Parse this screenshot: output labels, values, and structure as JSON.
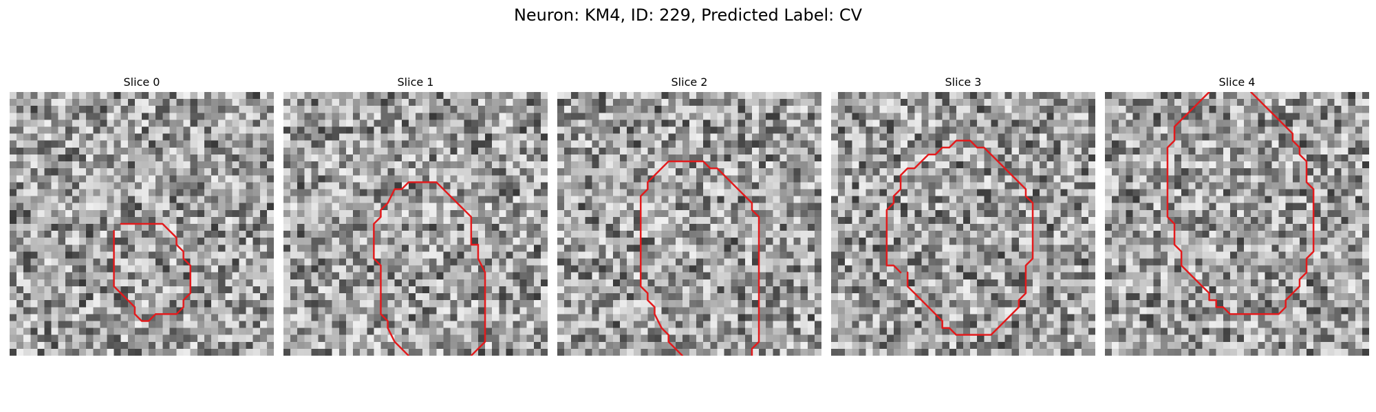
{
  "figure": {
    "title": "Neuron: KM4, ID: 229, Predicted Label: CV",
    "contour_color": "#e31a1c"
  },
  "panels": [
    {
      "title": "Slice 0",
      "contour": [
        [
          15,
          20
        ],
        [
          15,
          21
        ],
        [
          15,
          24
        ],
        [
          15,
          28
        ],
        [
          16,
          29
        ],
        [
          17,
          30
        ],
        [
          18,
          31
        ],
        [
          18,
          32
        ],
        [
          19,
          33
        ],
        [
          20,
          33
        ],
        [
          21,
          32
        ],
        [
          22,
          32
        ],
        [
          23,
          32
        ],
        [
          24,
          32
        ],
        [
          25,
          31
        ],
        [
          25,
          30
        ],
        [
          26,
          29
        ],
        [
          26,
          28
        ],
        [
          26,
          27
        ],
        [
          26,
          26
        ],
        [
          26,
          25
        ],
        [
          25,
          24
        ],
        [
          25,
          23
        ],
        [
          24,
          22
        ],
        [
          24,
          21
        ],
        [
          23,
          20
        ],
        [
          22,
          19
        ],
        [
          21,
          19
        ],
        [
          20,
          19
        ],
        [
          19,
          19
        ],
        [
          18,
          19
        ],
        [
          17,
          19
        ],
        [
          16,
          19
        ]
      ]
    },
    {
      "title": "Slice 1",
      "contour": [
        [
          18,
          38
        ],
        [
          16,
          36
        ],
        [
          15,
          34
        ],
        [
          15,
          33
        ],
        [
          14,
          32
        ],
        [
          14,
          30
        ],
        [
          14,
          25
        ],
        [
          13,
          24
        ],
        [
          13,
          23
        ],
        [
          13,
          20
        ],
        [
          13,
          19
        ],
        [
          14,
          18
        ],
        [
          14,
          17
        ],
        [
          15,
          16
        ],
        [
          16,
          14
        ],
        [
          17,
          14
        ],
        [
          18,
          13
        ],
        [
          19,
          13
        ],
        [
          20,
          13
        ],
        [
          21,
          13
        ],
        [
          22,
          13
        ],
        [
          23,
          14
        ],
        [
          24,
          15
        ],
        [
          25,
          16
        ],
        [
          26,
          17
        ],
        [
          27,
          18
        ],
        [
          27,
          20
        ],
        [
          27,
          22
        ],
        [
          28,
          22
        ],
        [
          28,
          23
        ],
        [
          28,
          24
        ],
        [
          29,
          26
        ],
        [
          29,
          27
        ],
        [
          29,
          28
        ],
        [
          29,
          29
        ],
        [
          29,
          30
        ],
        [
          29,
          33
        ],
        [
          29,
          35
        ],
        [
          29,
          36
        ],
        [
          28,
          37
        ],
        [
          27,
          38
        ]
      ]
    },
    {
      "title": "Slice 2",
      "contour": [
        [
          18,
          38
        ],
        [
          17,
          37
        ],
        [
          16,
          36
        ],
        [
          16,
          35
        ],
        [
          15,
          34
        ],
        [
          14,
          32
        ],
        [
          14,
          31
        ],
        [
          13,
          30
        ],
        [
          13,
          29
        ],
        [
          12,
          28
        ],
        [
          12,
          27
        ],
        [
          12,
          25
        ],
        [
          12,
          20
        ],
        [
          12,
          19
        ],
        [
          12,
          17
        ],
        [
          12,
          15
        ],
        [
          13,
          14
        ],
        [
          13,
          13
        ],
        [
          14,
          12
        ],
        [
          15,
          11
        ],
        [
          16,
          10
        ],
        [
          17,
          10
        ],
        [
          18,
          10
        ],
        [
          19,
          10
        ],
        [
          20,
          10
        ],
        [
          21,
          10
        ],
        [
          22,
          11
        ],
        [
          23,
          11
        ],
        [
          24,
          12
        ],
        [
          25,
          13
        ],
        [
          26,
          14
        ],
        [
          27,
          15
        ],
        [
          28,
          16
        ],
        [
          28,
          17
        ],
        [
          29,
          18
        ],
        [
          29,
          20
        ],
        [
          29,
          22
        ],
        [
          29,
          25
        ],
        [
          29,
          28
        ],
        [
          29,
          30
        ],
        [
          29,
          32
        ],
        [
          29,
          34
        ],
        [
          29,
          35
        ],
        [
          29,
          36
        ],
        [
          28,
          37
        ],
        [
          28,
          38
        ]
      ]
    },
    {
      "title": "Slice 3",
      "contour": [
        [
          11,
          26
        ],
        [
          11,
          27
        ],
        [
          11,
          28
        ],
        [
          12,
          29
        ],
        [
          13,
          30
        ],
        [
          14,
          31
        ],
        [
          15,
          32
        ],
        [
          16,
          33
        ],
        [
          16,
          34
        ],
        [
          17,
          34
        ],
        [
          18,
          35
        ],
        [
          19,
          35
        ],
        [
          20,
          35
        ],
        [
          21,
          35
        ],
        [
          22,
          35
        ],
        [
          23,
          35
        ],
        [
          24,
          34
        ],
        [
          25,
          33
        ],
        [
          26,
          32
        ],
        [
          27,
          31
        ],
        [
          27,
          30
        ],
        [
          28,
          29
        ],
        [
          28,
          28
        ],
        [
          28,
          25
        ],
        [
          29,
          24
        ],
        [
          29,
          23
        ],
        [
          29,
          20
        ],
        [
          29,
          18
        ],
        [
          29,
          16
        ],
        [
          28,
          15
        ],
        [
          28,
          14
        ],
        [
          27,
          13
        ],
        [
          26,
          12
        ],
        [
          25,
          11
        ],
        [
          24,
          10
        ],
        [
          23,
          9
        ],
        [
          22,
          8
        ],
        [
          21,
          8
        ],
        [
          20,
          7
        ],
        [
          19,
          7
        ],
        [
          18,
          7
        ],
        [
          17,
          8
        ],
        [
          16,
          8
        ],
        [
          15,
          9
        ],
        [
          14,
          9
        ],
        [
          13,
          10
        ],
        [
          12,
          11
        ],
        [
          11,
          11
        ],
        [
          10,
          12
        ],
        [
          10,
          14
        ],
        [
          9,
          15
        ],
        [
          9,
          16
        ],
        [
          8,
          17
        ],
        [
          8,
          18
        ],
        [
          8,
          21
        ],
        [
          8,
          24
        ],
        [
          8,
          25
        ],
        [
          9,
          25
        ],
        [
          10,
          26
        ]
      ]
    },
    {
      "title": "Slice 4",
      "contour": [
        [
          15,
          0
        ],
        [
          15,
          0
        ],
        [
          14,
          1
        ],
        [
          13,
          2
        ],
        [
          12,
          3
        ],
        [
          11,
          4
        ],
        [
          10,
          5
        ],
        [
          10,
          7
        ],
        [
          9,
          8
        ],
        [
          9,
          9
        ],
        [
          9,
          10
        ],
        [
          9,
          11
        ],
        [
          9,
          13
        ],
        [
          9,
          15
        ],
        [
          9,
          17
        ],
        [
          9,
          18
        ],
        [
          10,
          19
        ],
        [
          10,
          20
        ],
        [
          10,
          21
        ],
        [
          10,
          22
        ],
        [
          11,
          23
        ],
        [
          11,
          24
        ],
        [
          11,
          25
        ],
        [
          12,
          26
        ],
        [
          13,
          27
        ],
        [
          14,
          28
        ],
        [
          15,
          29
        ],
        [
          15,
          30
        ],
        [
          16,
          30
        ],
        [
          16,
          31
        ],
        [
          17,
          31
        ],
        [
          18,
          32
        ],
        [
          20,
          32
        ],
        [
          22,
          32
        ],
        [
          24,
          32
        ],
        [
          25,
          32
        ],
        [
          26,
          31
        ],
        [
          26,
          30
        ],
        [
          27,
          29
        ],
        [
          28,
          28
        ],
        [
          28,
          27
        ],
        [
          29,
          26
        ],
        [
          29,
          24
        ],
        [
          30,
          23
        ],
        [
          30,
          22
        ],
        [
          30,
          21
        ],
        [
          30,
          20
        ],
        [
          30,
          18
        ],
        [
          30,
          16
        ],
        [
          30,
          14
        ],
        [
          29,
          13
        ],
        [
          29,
          12
        ],
        [
          29,
          11
        ],
        [
          29,
          10
        ],
        [
          28,
          9
        ],
        [
          28,
          8
        ],
        [
          27,
          7
        ],
        [
          27,
          6
        ],
        [
          26,
          5
        ],
        [
          25,
          4
        ],
        [
          24,
          3
        ],
        [
          23,
          2
        ],
        [
          22,
          1
        ],
        [
          21,
          0
        ]
      ]
    }
  ]
}
